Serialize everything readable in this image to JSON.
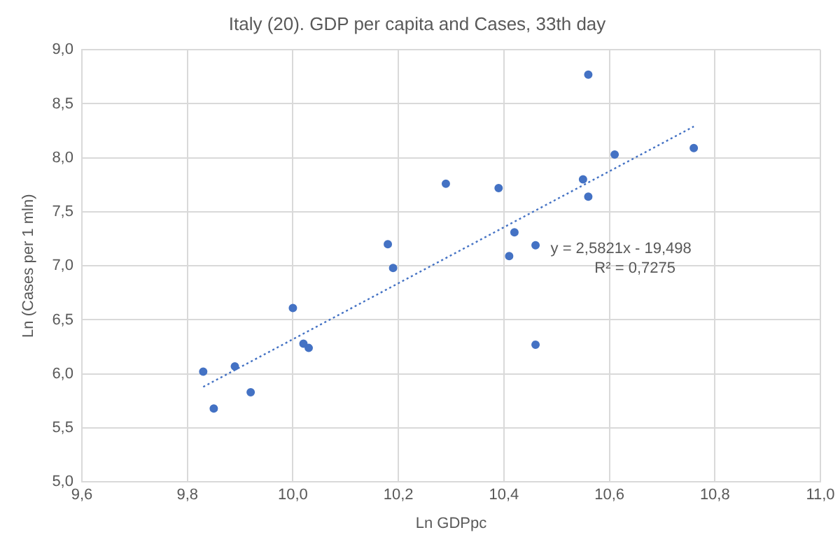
{
  "chart_data": {
    "type": "scatter",
    "title": "Italy (20). GDP per capita and Cases, 33th day",
    "xlabel": "Ln GDPpc",
    "ylabel": "Ln (Cases per 1 mln)",
    "xlim": [
      9.6,
      11.0
    ],
    "xticks": [
      {
        "value": 9.6,
        "label": "9,6"
      },
      {
        "value": 9.8,
        "label": "9,8"
      },
      {
        "value": 10.0,
        "label": "10,0"
      },
      {
        "value": 10.2,
        "label": "10,2"
      },
      {
        "value": 10.4,
        "label": "10,4"
      },
      {
        "value": 10.6,
        "label": "10,6"
      },
      {
        "value": 10.8,
        "label": "10,8"
      },
      {
        "value": 11.0,
        "label": "11,0"
      }
    ],
    "ylim": [
      5.0,
      9.0
    ],
    "yticks": [
      {
        "value": 5.0,
        "label": "5,0"
      },
      {
        "value": 5.5,
        "label": "5,5"
      },
      {
        "value": 6.0,
        "label": "6,0"
      },
      {
        "value": 6.5,
        "label": "6,5"
      },
      {
        "value": 7.0,
        "label": "7,0"
      },
      {
        "value": 7.5,
        "label": "7,5"
      },
      {
        "value": 8.0,
        "label": "8,0"
      },
      {
        "value": 8.5,
        "label": "8,5"
      },
      {
        "value": 9.0,
        "label": "9,0"
      }
    ],
    "grid": true,
    "legend": false,
    "series": [
      {
        "marker": "circle",
        "color": "#4472c4",
        "x": [
          9.83,
          9.85,
          9.89,
          9.92,
          10.0,
          10.02,
          10.03,
          10.18,
          10.19,
          10.29,
          10.39,
          10.41,
          10.42,
          10.46,
          10.46,
          10.55,
          10.56,
          10.56,
          10.61,
          10.76
        ],
        "values": [
          6.02,
          5.68,
          6.07,
          5.83,
          6.61,
          6.28,
          6.24,
          7.2,
          6.98,
          7.76,
          7.72,
          7.09,
          7.31,
          7.19,
          6.27,
          7.8,
          7.64,
          8.77,
          8.03,
          8.09
        ]
      },
      {
        "type": "line",
        "marker": "none",
        "color": "#4472c4",
        "line_style": "dotted",
        "x": [
          9.83,
          10.76
        ],
        "values": [
          5.88,
          8.29
        ]
      }
    ],
    "annotations": [
      "y = 2,5821x - 19,498",
      "R² = 0,7275"
    ]
  }
}
